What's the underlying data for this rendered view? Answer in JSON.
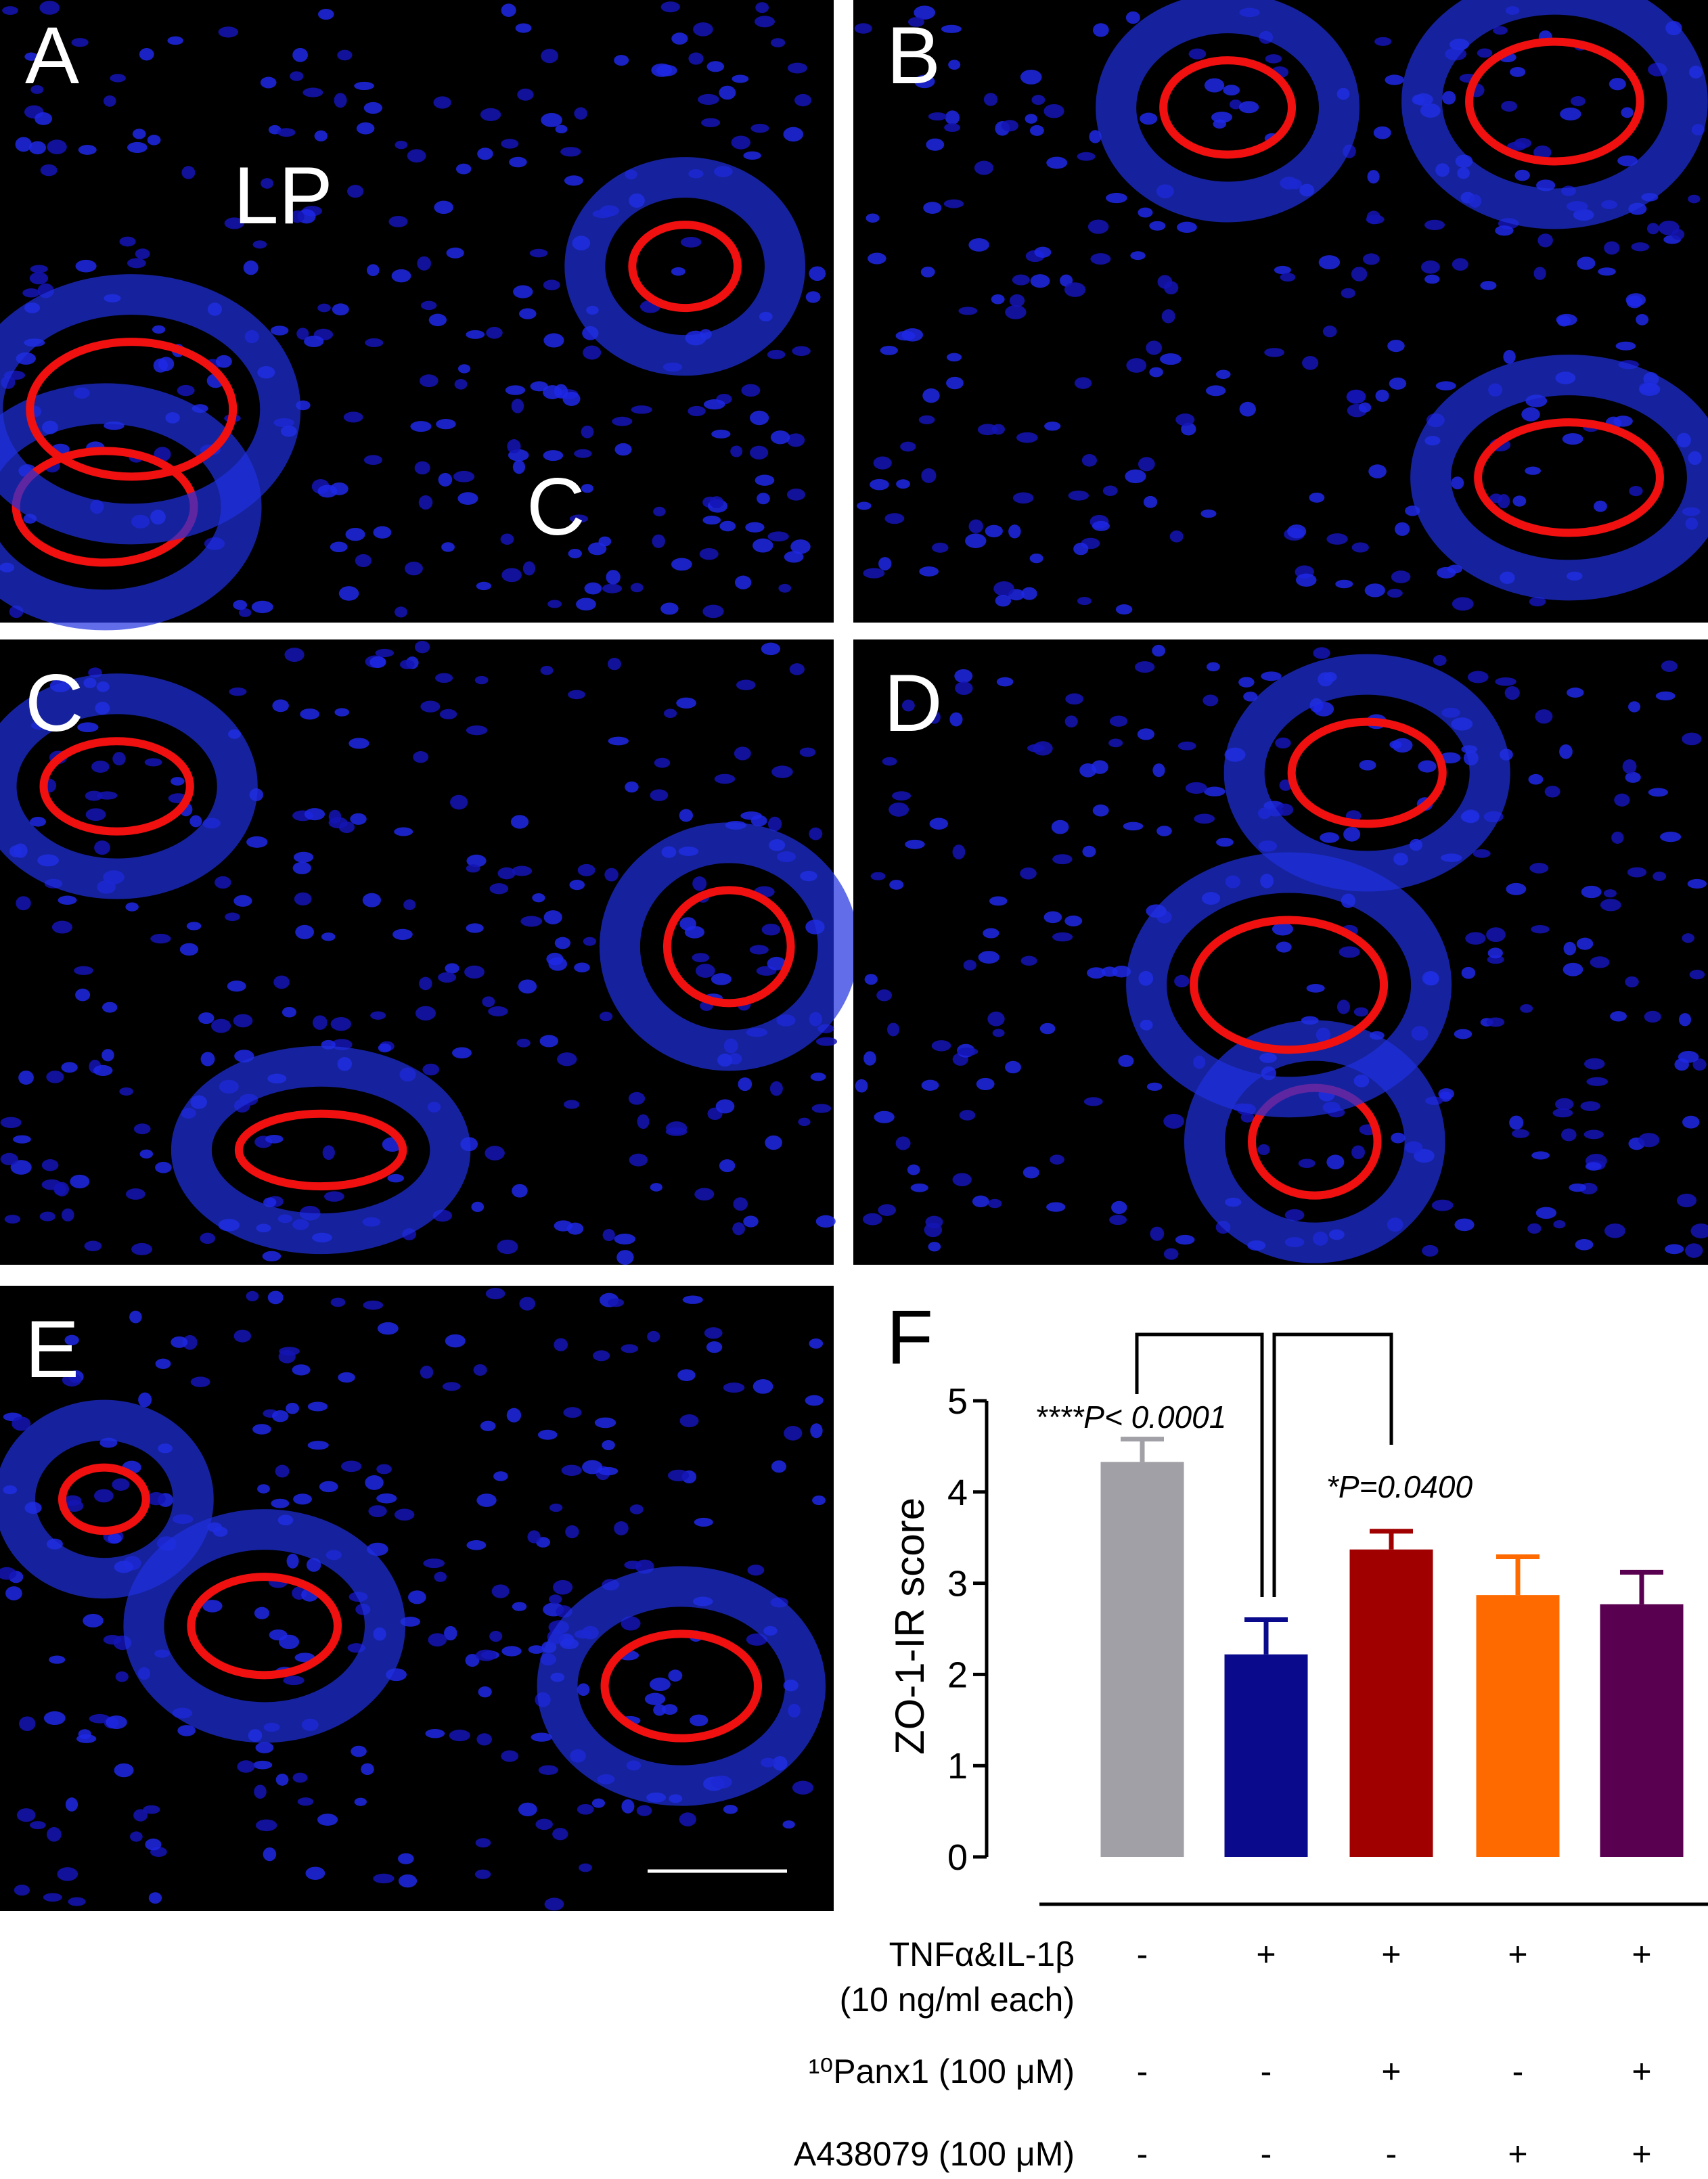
{
  "panels": {
    "labels": [
      "A",
      "B",
      "C",
      "D",
      "E",
      "F"
    ],
    "annotations": [
      "LP",
      "C"
    ]
  },
  "chart_data": {
    "type": "bar",
    "ylabel": "ZO-1-IR score",
    "values": [
      4.33,
      2.22,
      3.37,
      2.87,
      2.77
    ],
    "errors": [
      0.25,
      0.38,
      0.2,
      0.42,
      0.35
    ],
    "colors": [
      "#a0a0a6",
      "#0a0a8c",
      "#a00000",
      "#ff6a00",
      "#5a0050"
    ],
    "ylim": [
      0,
      5
    ],
    "yticks": [
      0,
      1,
      2,
      3,
      4,
      5
    ],
    "annotations": [
      "****P< 0.0001",
      "*P=0.0400"
    ],
    "conditions": [
      {
        "label": [
          "TNFα&IL-1β",
          "(10 ng/ml each)"
        ],
        "signs": [
          "-",
          "+",
          "+",
          "+",
          "+"
        ]
      },
      {
        "label": [
          "¹⁰Panx1 (100 μM)"
        ],
        "signs": [
          "-",
          "-",
          "+",
          "-",
          "+"
        ]
      },
      {
        "label": [
          "A438079 (100 μM)"
        ],
        "signs": [
          "-",
          "-",
          "-",
          "+",
          "+"
        ]
      }
    ]
  }
}
